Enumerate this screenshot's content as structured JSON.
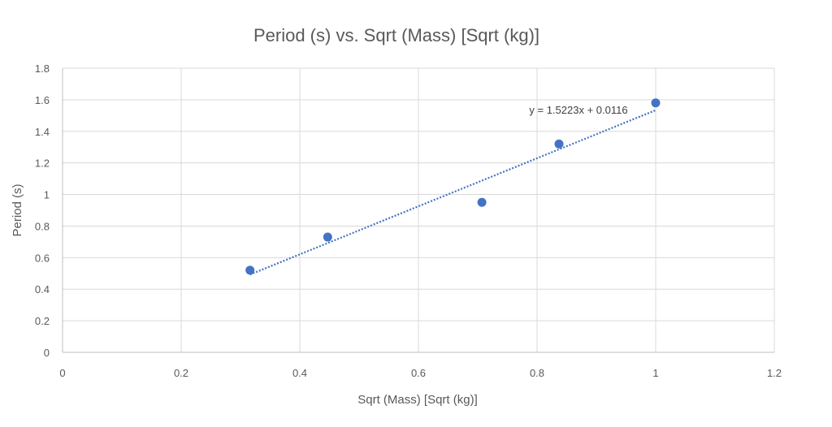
{
  "chart_data": {
    "type": "scatter",
    "title": "Period (s) vs. Sqrt (Mass) [Sqrt (kg)]",
    "xlabel": "Sqrt (Mass) [Sqrt (kg)]",
    "ylabel": "Period (s)",
    "xlim": [
      0,
      1.2
    ],
    "ylim": [
      0,
      1.8
    ],
    "x_ticks": [
      0,
      0.2,
      0.4,
      0.6,
      0.8,
      1,
      1.2
    ],
    "y_ticks": [
      0,
      0.2,
      0.4,
      0.6,
      0.8,
      1,
      1.2,
      1.4,
      1.6,
      1.8
    ],
    "x_tick_labels": [
      "0",
      "0.2",
      "0.4",
      "0.6",
      "0.8",
      "1",
      "1.2"
    ],
    "y_tick_labels": [
      "0",
      "0.2",
      "0.4",
      "0.6",
      "0.8",
      "1",
      "1.2",
      "1.4",
      "1.6",
      "1.8"
    ],
    "grid": true,
    "legend": "none",
    "colors": {
      "marker": "#4472c4",
      "trendline": "#4472c4",
      "grid": "#d9d9d9"
    },
    "series": [
      {
        "points": [
          {
            "x": 0.316,
            "y": 0.52
          },
          {
            "x": 0.447,
            "y": 0.73
          },
          {
            "x": 0.707,
            "y": 0.95
          },
          {
            "x": 0.837,
            "y": 1.32
          },
          {
            "x": 1.0,
            "y": 1.58
          }
        ]
      }
    ],
    "trendline": {
      "type": "linear",
      "slope": 1.5223,
      "intercept": 0.0116,
      "x_range": [
        0.316,
        1.0
      ],
      "equation_label": "y = 1.5223x + 0.0116"
    }
  }
}
